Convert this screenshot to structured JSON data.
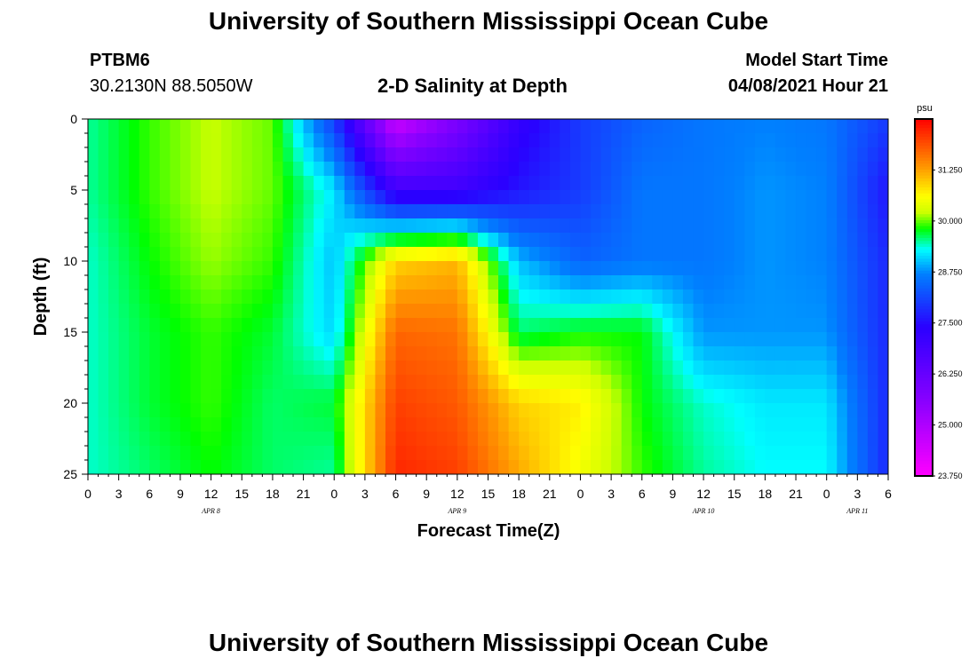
{
  "page": {
    "title_top": "University of Southern Mississippi Ocean Cube",
    "title_bottom": "University of Southern Mississippi Ocean Cube",
    "station_id": "PTBM6",
    "station_coords": "30.2130N  88.5050W",
    "run_label": "Model Start Time",
    "run_time": "04/08/2021 Hour 21"
  },
  "chart_data": {
    "type": "heatmap",
    "title": "2-D Salinity at Depth",
    "xlabel": "Forecast Time(Z)",
    "ylabel": "Depth (ft)",
    "y_ticks": [
      0,
      5,
      10,
      15,
      20,
      25
    ],
    "ylim": [
      0,
      25
    ],
    "y_inverted": true,
    "x_tick_labels": [
      "0",
      "3",
      "6",
      "9",
      "12",
      "15",
      "18",
      "21",
      "0",
      "3",
      "6",
      "9",
      "12",
      "15",
      "18",
      "21",
      "0",
      "3",
      "6",
      "9",
      "12",
      "15",
      "18",
      "21",
      "0",
      "3",
      "6"
    ],
    "x_tick_hours": [
      0,
      3,
      6,
      9,
      12,
      15,
      18,
      21,
      24,
      27,
      30,
      33,
      36,
      39,
      42,
      45,
      48,
      51,
      54,
      57,
      60,
      63,
      66,
      69,
      72,
      75,
      78
    ],
    "xlim_hours": [
      0,
      78
    ],
    "date_labels": [
      {
        "text": "APR 8",
        "hour": 12
      },
      {
        "text": "APR 9",
        "hour": 36
      },
      {
        "text": "APR 10",
        "hour": 60
      },
      {
        "text": "APR 11",
        "hour": 75
      }
    ],
    "colorbar": {
      "unit": "psu",
      "min": 23.75,
      "max": 32.5,
      "tick_labels": [
        "31.250",
        "30.000",
        "28.750",
        "27.500",
        "26.250",
        "25.000",
        "23.750"
      ],
      "tick_values": [
        31.25,
        30.0,
        28.75,
        27.5,
        26.25,
        25.0,
        23.75
      ],
      "color_stops": [
        {
          "v": 23.75,
          "c": "#ff00ff"
        },
        {
          "v": 25.6,
          "c": "#8800ff"
        },
        {
          "v": 27.4,
          "c": "#2a00ff"
        },
        {
          "v": 28.7,
          "c": "#0080ff"
        },
        {
          "v": 29.3,
          "c": "#00ffff"
        },
        {
          "v": 29.8,
          "c": "#00ff00"
        },
        {
          "v": 30.2,
          "c": "#ccff00"
        },
        {
          "v": 30.6,
          "c": "#ffff00"
        },
        {
          "v": 31.3,
          "c": "#ff9900"
        },
        {
          "v": 32.5,
          "c": "#ff0000"
        }
      ]
    },
    "grid_depths_ft": [
      0,
      5,
      10,
      15,
      20,
      25
    ],
    "grid_hours": [
      0,
      6,
      12,
      18,
      24,
      30,
      36,
      42,
      48,
      54,
      60,
      66,
      72,
      78
    ],
    "salinity_psu": [
      [
        29.5,
        29.9,
        30.2,
        30.0,
        28.0,
        24.5,
        25.8,
        27.2,
        28.0,
        28.4,
        28.6,
        28.7,
        28.6,
        28.0
      ],
      [
        29.5,
        29.9,
        30.2,
        30.0,
        29.2,
        27.0,
        27.0,
        27.6,
        28.0,
        28.6,
        28.6,
        28.8,
        28.7,
        27.6
      ],
      [
        29.4,
        29.8,
        30.1,
        29.9,
        29.0,
        30.9,
        31.1,
        29.0,
        28.4,
        28.6,
        28.6,
        28.8,
        28.7,
        27.8
      ],
      [
        29.4,
        29.7,
        29.9,
        29.7,
        29.1,
        31.7,
        31.6,
        29.6,
        29.8,
        29.8,
        28.8,
        28.8,
        28.8,
        27.8
      ],
      [
        29.4,
        29.7,
        29.9,
        29.6,
        29.7,
        32.0,
        31.8,
        30.9,
        30.7,
        29.8,
        29.4,
        29.2,
        29.2,
        27.8
      ],
      [
        29.4,
        29.6,
        29.8,
        29.6,
        29.5,
        32.2,
        32.0,
        31.2,
        30.5,
        29.9,
        29.5,
        29.3,
        29.3,
        27.8
      ]
    ]
  }
}
